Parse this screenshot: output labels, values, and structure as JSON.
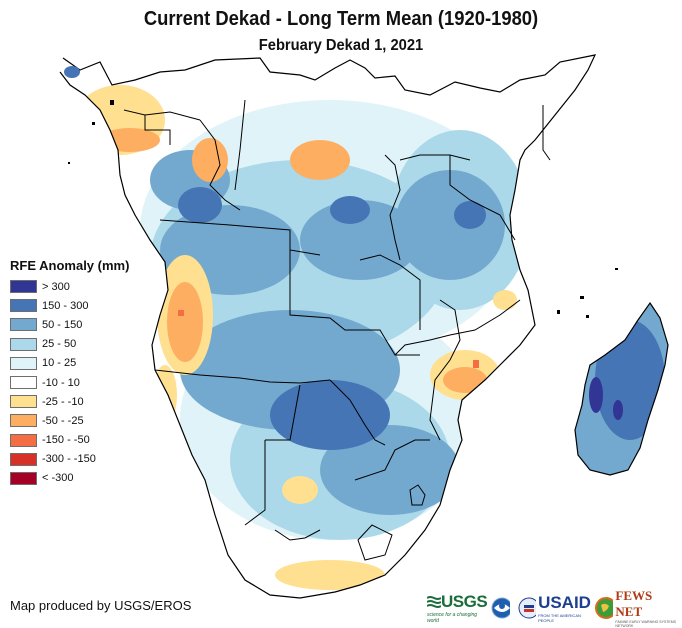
{
  "header": {
    "title": "Current Dekad - Long Term Mean (1920-1980)",
    "subtitle": "February Dekad 1, 2021"
  },
  "legend": {
    "title": "RFE Anomaly (mm)",
    "items": [
      {
        "label": "> 300",
        "color": "#313695"
      },
      {
        "label": "150 - 300",
        "color": "#4575b4"
      },
      {
        "label": "50 - 150",
        "color": "#74a9cf"
      },
      {
        "label": "25 - 50",
        "color": "#abd9e9"
      },
      {
        "label": "10 - 25",
        "color": "#e0f3f8"
      },
      {
        "label": "-10 - 10",
        "color": "#ffffff"
      },
      {
        "label": "-25 - -10",
        "color": "#fee090"
      },
      {
        "label": "-50 - -25",
        "color": "#fdae61"
      },
      {
        "label": "-150 - -50",
        "color": "#f46d43"
      },
      {
        "label": "-300 - -150",
        "color": "#d73027"
      },
      {
        "label": "< -300",
        "color": "#a50026"
      }
    ]
  },
  "map": {
    "region": "Southern and Central Africa with Madagascar",
    "variable": "RFE Anomaly (mm)"
  },
  "footer": {
    "credit": "Map produced by USGS/EROS",
    "logos": {
      "usgs": "USGS",
      "usgs_tagline": "science for a changing world",
      "noaa": "NOAA",
      "usaid": "USAID",
      "usaid_tagline": "FROM THE AMERICAN PEOPLE",
      "fews": "FEWS NET",
      "fews_tagline": "FAMINE EARLY WARNING SYSTEMS NETWORK"
    }
  }
}
